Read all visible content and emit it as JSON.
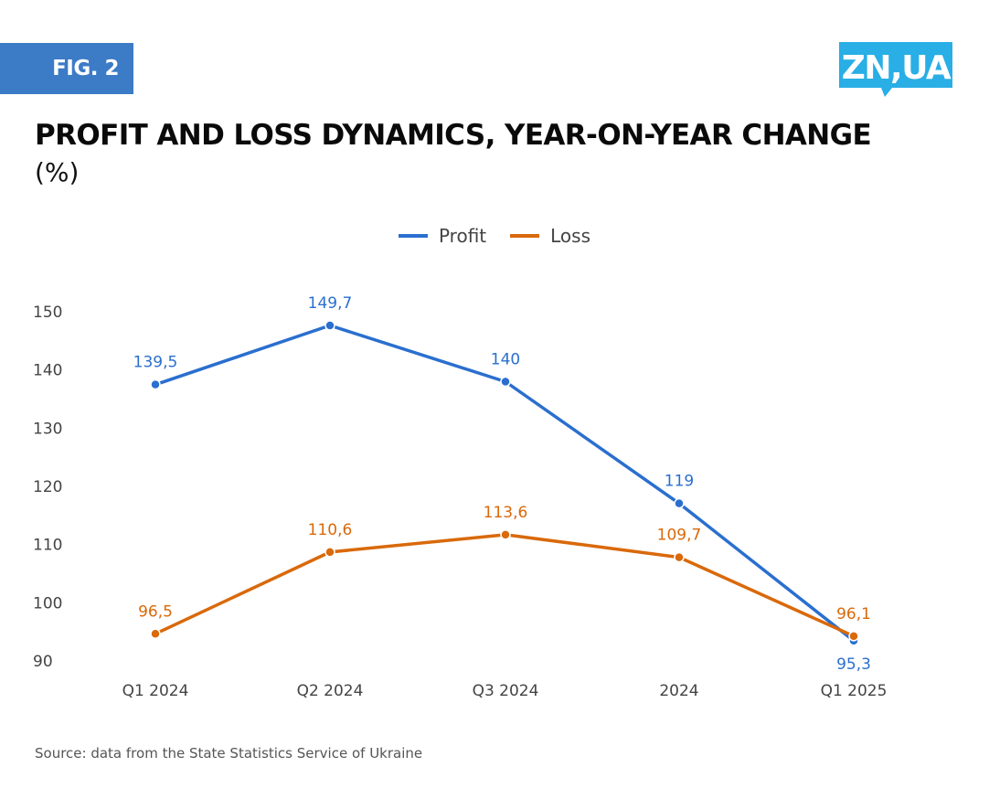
{
  "header": {
    "fig_label": "FIG. 2",
    "logo_text": "ZN,UA",
    "logo_color": "#29aee6",
    "fig_color": "#3c7bc6"
  },
  "title": "PROFIT AND LOSS DYNAMICS, YEAR-ON-YEAR CHANGE",
  "subtitle": "(%)",
  "source": "Source: data from the State Statistics Service of Ukraine",
  "chart_data": {
    "type": "line",
    "title": "PROFIT AND LOSS DYNAMICS, YEAR-ON-YEAR CHANGE",
    "subtitle": "(%)",
    "xlabel": "",
    "ylabel": "",
    "categories": [
      "Q1 2024",
      "Q2 2024",
      "Q3 2024",
      "2024",
      "Q1 2025"
    ],
    "yticks": [
      90,
      100,
      110,
      120,
      130,
      140,
      150
    ],
    "ylim": [
      90,
      150
    ],
    "grid": false,
    "legend_position": "top-center",
    "series": [
      {
        "name": "Profit",
        "color": "#2a6fcf",
        "values": [
          139.5,
          149.7,
          140,
          119,
          95.3
        ],
        "labels": [
          "139,5",
          "149,7",
          "140",
          "119",
          "95,3"
        ]
      },
      {
        "name": "Loss",
        "color": "#d9690a",
        "values": [
          96.5,
          110.6,
          113.6,
          109.7,
          96.1
        ],
        "labels": [
          "96,5",
          "110,6",
          "113,6",
          "109,7",
          "96,1"
        ]
      }
    ]
  }
}
